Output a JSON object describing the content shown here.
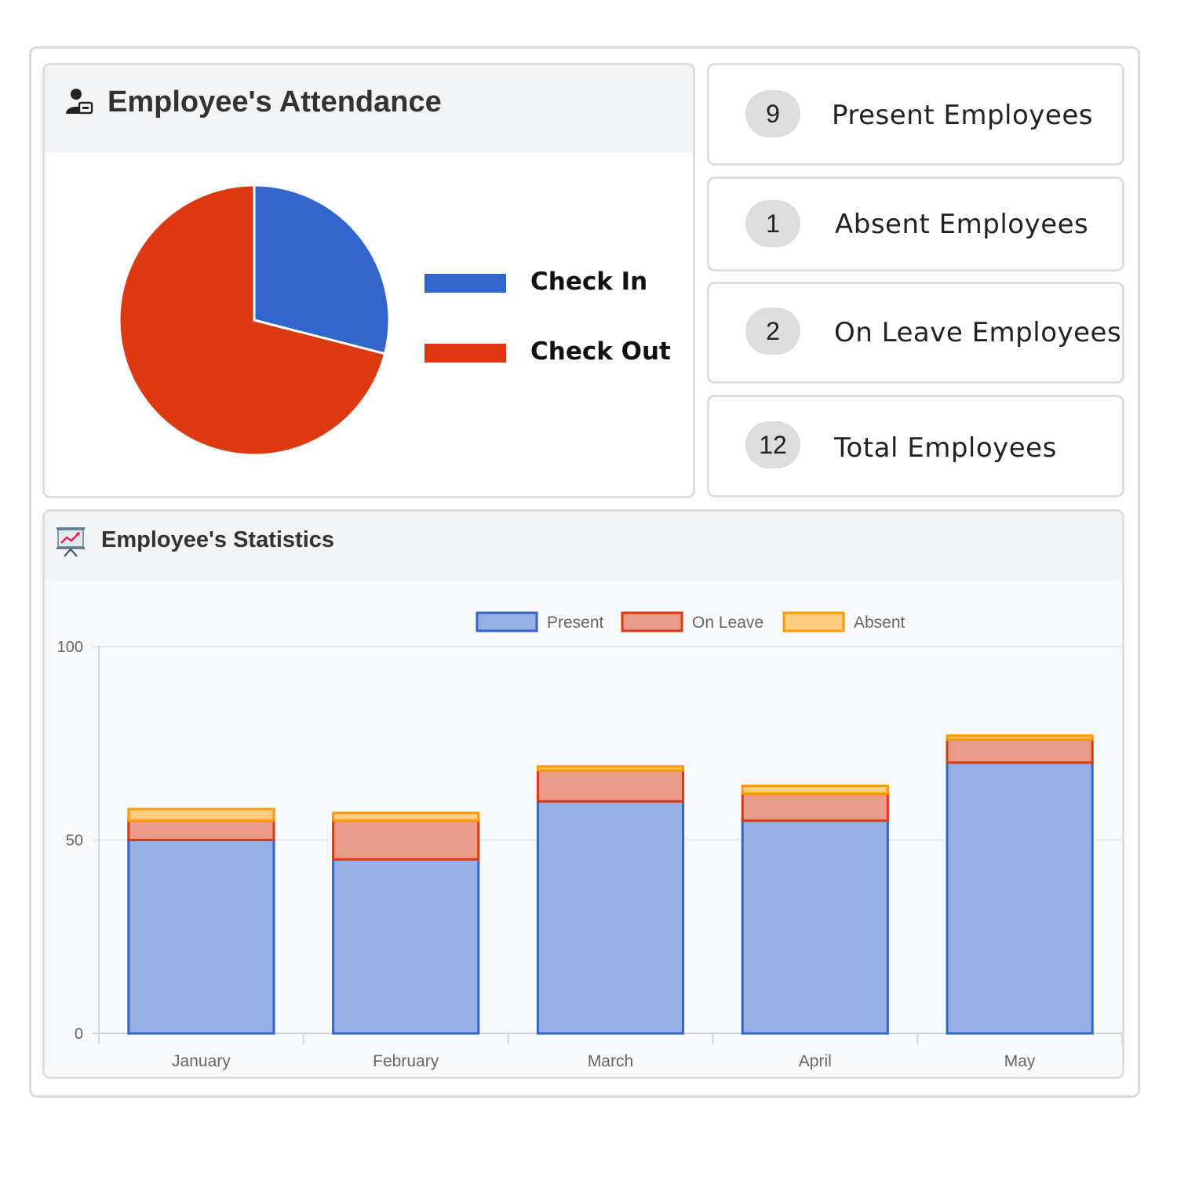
{
  "attendance": {
    "title": "Employee's Attendance",
    "icon": "user-badge-icon",
    "legend": [
      {
        "label": "Check In",
        "color": "#3366cc"
      },
      {
        "label": "Check Out",
        "color": "#dc3912"
      }
    ]
  },
  "stats": [
    {
      "value": "9",
      "label": "Present Employees"
    },
    {
      "value": "1",
      "label": "Absent Employees"
    },
    {
      "value": "2",
      "label": "On Leave Employees"
    },
    {
      "value": "12",
      "label": "Total Employees"
    }
  ],
  "statistics": {
    "title": "Employee's Statistics",
    "icon": "presentation-chart-icon"
  },
  "chart_data": [
    {
      "type": "pie",
      "labels": [
        "Check In",
        "Check Out"
      ],
      "values": [
        29,
        71
      ],
      "colors": [
        "#3366cc",
        "#dc3912"
      ],
      "legend": "right"
    },
    {
      "type": "bar",
      "stacked": true,
      "categories": [
        "January",
        "February",
        "March",
        "April",
        "May"
      ],
      "series": [
        {
          "name": "Present",
          "values": [
            50,
            45,
            60,
            55,
            70
          ],
          "fill": "#97afe2",
          "stroke": "#3366cc"
        },
        {
          "name": "On Leave",
          "values": [
            5,
            10,
            8,
            7,
            6
          ],
          "fill": "#e99b8a",
          "stroke": "#dc3912"
        },
        {
          "name": "Absent",
          "values": [
            3,
            2,
            1,
            2,
            1
          ],
          "fill": "#ffcc80",
          "stroke": "#ff9900"
        }
      ],
      "ylim": [
        0,
        100
      ],
      "yticks": [
        0,
        50,
        100
      ],
      "grid": true,
      "legend": "top"
    }
  ]
}
